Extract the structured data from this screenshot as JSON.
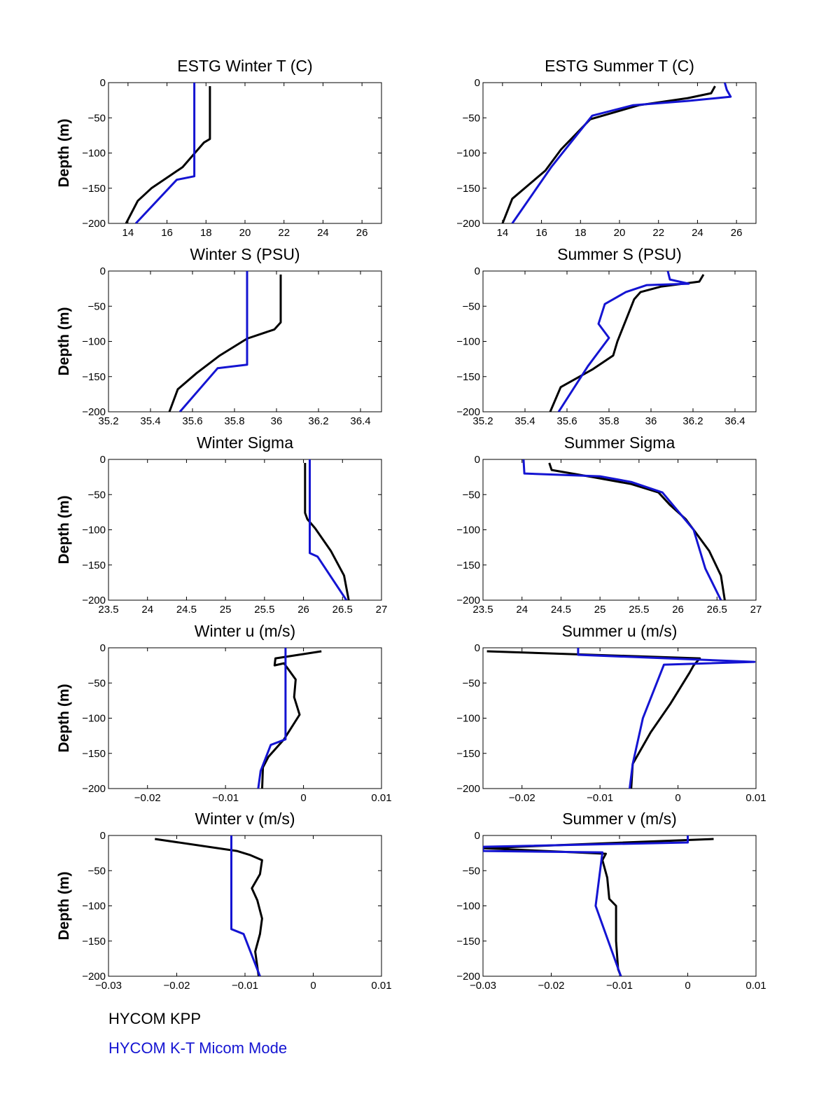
{
  "legend": [
    {
      "name": "HYCOM KPP",
      "color": "#000000"
    },
    {
      "name": "HYCOM K-T Micom Mode",
      "color": "#1414d2"
    }
  ],
  "chart_data": [
    {
      "type": "line",
      "title": "ESTG Winter T (C)",
      "ylabel": "Depth (m)",
      "xlabel": "",
      "xlim": [
        13,
        27
      ],
      "ylim": [
        -200,
        0
      ],
      "xticks": [
        14,
        16,
        18,
        20,
        22,
        24,
        26
      ],
      "xtick_labels": [
        "14",
        "16",
        "18",
        "20",
        "22",
        "24",
        "26"
      ],
      "yticks": [
        0,
        -50,
        -100,
        -150,
        -200
      ],
      "ytick_labels": [
        "0",
        "−50",
        "−100",
        "−150",
        "−200"
      ],
      "series": [
        {
          "name": "HYCOM KPP",
          "color": "#000000",
          "points": [
            [
              18.2,
              -5
            ],
            [
              18.2,
              -80
            ],
            [
              17.9,
              -85
            ],
            [
              16.8,
              -120
            ],
            [
              15.2,
              -150
            ],
            [
              14.5,
              -168
            ],
            [
              13.9,
              -200
            ]
          ]
        },
        {
          "name": "HYCOM K-T Micom Mode",
          "color": "#1414d2",
          "points": [
            [
              17.4,
              0
            ],
            [
              17.4,
              -133
            ],
            [
              16.5,
              -138
            ],
            [
              14.4,
              -200
            ]
          ]
        }
      ]
    },
    {
      "type": "line",
      "title": "ESTG Summer T (C)",
      "ylabel": "",
      "xlabel": "",
      "xlim": [
        13,
        27
      ],
      "ylim": [
        -200,
        0
      ],
      "xticks": [
        14,
        16,
        18,
        20,
        22,
        24,
        26
      ],
      "xtick_labels": [
        "14",
        "16",
        "18",
        "20",
        "22",
        "24",
        "26"
      ],
      "yticks": [
        0,
        -50,
        -100,
        -150,
        -200
      ],
      "ytick_labels": [
        "0",
        "−50",
        "−100",
        "−150",
        "−200"
      ],
      "series": [
        {
          "name": "HYCOM KPP",
          "color": "#000000",
          "points": [
            [
              24.9,
              -5
            ],
            [
              24.7,
              -15
            ],
            [
              23.5,
              -22
            ],
            [
              21,
              -32
            ],
            [
              18.5,
              -52
            ],
            [
              17,
              -95
            ],
            [
              16.2,
              -125
            ],
            [
              14.5,
              -165
            ],
            [
              14,
              -200
            ]
          ]
        },
        {
          "name": "HYCOM K-T Micom Mode",
          "color": "#1414d2",
          "points": [
            [
              25.4,
              0
            ],
            [
              25.5,
              -10
            ],
            [
              25.7,
              -20
            ],
            [
              23.5,
              -26
            ],
            [
              20.7,
              -32
            ],
            [
              18.6,
              -47
            ],
            [
              16.5,
              -120
            ],
            [
              14.5,
              -200
            ]
          ]
        }
      ]
    },
    {
      "type": "line",
      "title": "Winter S (PSU)",
      "ylabel": "Depth (m)",
      "xlabel": "",
      "xlim": [
        35.2,
        36.5
      ],
      "ylim": [
        -200,
        0
      ],
      "xticks": [
        35.2,
        35.4,
        35.6,
        35.8,
        36,
        36.2,
        36.4
      ],
      "xtick_labels": [
        "35.2",
        "35.4",
        "35.6",
        "35.8",
        "36",
        "36.2",
        "36.4"
      ],
      "yticks": [
        0,
        -50,
        -100,
        -150,
        -200
      ],
      "ytick_labels": [
        "0",
        "−50",
        "−100",
        "−150",
        "−200"
      ],
      "series": [
        {
          "name": "HYCOM KPP",
          "color": "#000000",
          "points": [
            [
              36.02,
              -5
            ],
            [
              36.02,
              -73
            ],
            [
              35.99,
              -83
            ],
            [
              35.86,
              -96
            ],
            [
              35.73,
              -120
            ],
            [
              35.62,
              -145
            ],
            [
              35.53,
              -168
            ],
            [
              35.49,
              -200
            ]
          ]
        },
        {
          "name": "HYCOM K-T Micom Mode",
          "color": "#1414d2",
          "points": [
            [
              35.86,
              0
            ],
            [
              35.86,
              -133
            ],
            [
              35.72,
              -138
            ],
            [
              35.54,
              -200
            ]
          ]
        }
      ]
    },
    {
      "type": "line",
      "title": "Summer S (PSU)",
      "ylabel": "",
      "xlabel": "",
      "xlim": [
        35.2,
        36.5
      ],
      "ylim": [
        -200,
        0
      ],
      "xticks": [
        35.2,
        35.4,
        35.6,
        35.8,
        36,
        36.2,
        36.4
      ],
      "xtick_labels": [
        "35.2",
        "35.4",
        "35.6",
        "35.8",
        "36",
        "36.2",
        "36.4"
      ],
      "yticks": [
        0,
        -50,
        -100,
        -150,
        -200
      ],
      "ytick_labels": [
        "0",
        "−50",
        "−100",
        "−150",
        "−200"
      ],
      "series": [
        {
          "name": "HYCOM KPP",
          "color": "#000000",
          "points": [
            [
              36.25,
              -5
            ],
            [
              36.23,
              -15
            ],
            [
              36.05,
              -22
            ],
            [
              35.95,
              -30
            ],
            [
              35.92,
              -40
            ],
            [
              35.88,
              -70
            ],
            [
              35.84,
              -100
            ],
            [
              35.82,
              -120
            ],
            [
              35.72,
              -140
            ],
            [
              35.57,
              -165
            ],
            [
              35.52,
              -200
            ]
          ]
        },
        {
          "name": "HYCOM K-T Micom Mode",
          "color": "#1414d2",
          "points": [
            [
              36.08,
              0
            ],
            [
              36.09,
              -12
            ],
            [
              36.18,
              -18
            ],
            [
              35.98,
              -20
            ],
            [
              35.88,
              -30
            ],
            [
              35.78,
              -47
            ],
            [
              35.75,
              -75
            ],
            [
              35.8,
              -95
            ],
            [
              35.7,
              -135
            ],
            [
              35.56,
              -200
            ]
          ]
        }
      ]
    },
    {
      "type": "line",
      "title": "Winter Sigma",
      "ylabel": "Depth (m)",
      "xlabel": "",
      "xlim": [
        23.5,
        27
      ],
      "ylim": [
        -200,
        0
      ],
      "xticks": [
        23.5,
        24,
        24.5,
        25,
        25.5,
        26,
        26.5,
        27
      ],
      "xtick_labels": [
        "23.5",
        "24",
        "24.5",
        "25",
        "25.5",
        "26",
        "26.5",
        "27"
      ],
      "yticks": [
        0,
        -50,
        -100,
        -150,
        -200
      ],
      "ytick_labels": [
        "0",
        "−50",
        "−100",
        "−150",
        "−200"
      ],
      "series": [
        {
          "name": "HYCOM KPP",
          "color": "#000000",
          "points": [
            [
              26.02,
              -5
            ],
            [
              26.02,
              -76
            ],
            [
              26.05,
              -85
            ],
            [
              26.15,
              -98
            ],
            [
              26.35,
              -130
            ],
            [
              26.52,
              -165
            ],
            [
              26.58,
              -200
            ]
          ]
        },
        {
          "name": "HYCOM K-T Micom Mode",
          "color": "#1414d2",
          "points": [
            [
              26.08,
              0
            ],
            [
              26.08,
              -133
            ],
            [
              26.18,
              -138
            ],
            [
              26.55,
              -200
            ]
          ]
        }
      ]
    },
    {
      "type": "line",
      "title": "Summer Sigma",
      "ylabel": "",
      "xlabel": "",
      "xlim": [
        23.5,
        27
      ],
      "ylim": [
        -200,
        0
      ],
      "xticks": [
        23.5,
        24,
        24.5,
        25,
        25.5,
        26,
        26.5,
        27
      ],
      "xtick_labels": [
        "23.5",
        "24",
        "24.5",
        "25",
        "25.5",
        "26",
        "26.5",
        "27"
      ],
      "yticks": [
        0,
        -50,
        -100,
        -150,
        -200
      ],
      "ytick_labels": [
        "0",
        "−50",
        "−100",
        "−150",
        "−200"
      ],
      "series": [
        {
          "name": "HYCOM KPP",
          "color": "#000000",
          "points": [
            [
              24.35,
              -5
            ],
            [
              24.38,
              -15
            ],
            [
              24.9,
              -25
            ],
            [
              25.4,
              -35
            ],
            [
              25.75,
              -47
            ],
            [
              25.9,
              -65
            ],
            [
              26.1,
              -85
            ],
            [
              26.2,
              -100
            ],
            [
              26.4,
              -130
            ],
            [
              26.55,
              -165
            ],
            [
              26.6,
              -200
            ]
          ]
        },
        {
          "name": "HYCOM K-T Micom Mode",
          "color": "#1414d2",
          "points": [
            [
              24.02,
              0
            ],
            [
              24.03,
              -20
            ],
            [
              25,
              -24
            ],
            [
              25.4,
              -32
            ],
            [
              25.8,
              -47
            ],
            [
              26.2,
              -100
            ],
            [
              26.35,
              -155
            ],
            [
              26.55,
              -200
            ]
          ]
        }
      ]
    },
    {
      "type": "line",
      "title": "Winter u (m/s)",
      "ylabel": "Depth (m)",
      "xlabel": "",
      "xlim": [
        -0.025,
        0.01
      ],
      "ylim": [
        -200,
        0
      ],
      "xticks": [
        -0.02,
        -0.01,
        0,
        0.01
      ],
      "xtick_labels": [
        "−0.02",
        "−0.01",
        "0",
        "0.01"
      ],
      "yticks": [
        0,
        -50,
        -100,
        -150,
        -200
      ],
      "ytick_labels": [
        "0",
        "−50",
        "−100",
        "−150",
        "−200"
      ],
      "series": [
        {
          "name": "HYCOM KPP",
          "color": "#000000",
          "points": [
            [
              0.0023,
              -5
            ],
            [
              -0.0036,
              -15
            ],
            [
              -0.0037,
              -25
            ],
            [
              -0.0025,
              -22
            ],
            [
              -0.001,
              -45
            ],
            [
              -0.0012,
              -70
            ],
            [
              -0.0005,
              -95
            ],
            [
              -0.0025,
              -130
            ],
            [
              -0.0045,
              -155
            ],
            [
              -0.0052,
              -170
            ],
            [
              -0.0053,
              -200
            ]
          ]
        },
        {
          "name": "HYCOM K-T Micom Mode",
          "color": "#1414d2",
          "points": [
            [
              -0.0023,
              0
            ],
            [
              -0.0023,
              -130
            ],
            [
              -0.0042,
              -138
            ],
            [
              -0.0055,
              -175
            ],
            [
              -0.0058,
              -200
            ]
          ]
        }
      ]
    },
    {
      "type": "line",
      "title": "Summer u (m/s)",
      "ylabel": "",
      "xlabel": "",
      "xlim": [
        -0.025,
        0.01
      ],
      "ylim": [
        -200,
        0
      ],
      "xticks": [
        -0.02,
        -0.01,
        0,
        0.01
      ],
      "xtick_labels": [
        "−0.02",
        "−0.01",
        "0",
        "0.01"
      ],
      "yticks": [
        0,
        -50,
        -100,
        -150,
        -200
      ],
      "ytick_labels": [
        "0",
        "−50",
        "−100",
        "−150",
        "−200"
      ],
      "series": [
        {
          "name": "HYCOM KPP",
          "color": "#000000",
          "points": [
            [
              -0.0245,
              -5
            ],
            [
              0.0028,
              -15
            ],
            [
              0.002,
              -25
            ],
            [
              0.0015,
              -35
            ],
            [
              -0.001,
              -80
            ],
            [
              -0.0035,
              -120
            ],
            [
              -0.0058,
              -165
            ],
            [
              -0.006,
              -200
            ]
          ]
        },
        {
          "name": "HYCOM K-T Micom Mode",
          "color": "#1414d2",
          "points": [
            [
              -0.0128,
              0
            ],
            [
              -0.0128,
              -10
            ],
            [
              0.0098,
              -20
            ],
            [
              -0.0018,
              -24
            ],
            [
              -0.0045,
              -100
            ],
            [
              -0.0058,
              -165
            ],
            [
              -0.0062,
              -200
            ]
          ]
        }
      ]
    },
    {
      "type": "line",
      "title": "Winter v (m/s)",
      "ylabel": "Depth (m)",
      "xlabel": "",
      "xlim": [
        -0.03,
        0.01
      ],
      "ylim": [
        -200,
        0
      ],
      "xticks": [
        -0.03,
        -0.02,
        -0.01,
        0,
        0.01
      ],
      "xtick_labels": [
        "−0.03",
        "−0.02",
        "−0.01",
        "0",
        "0.01"
      ],
      "yticks": [
        0,
        -50,
        -100,
        -150,
        -200
      ],
      "ytick_labels": [
        "0",
        "−50",
        "−100",
        "−150",
        "−200"
      ],
      "series": [
        {
          "name": "HYCOM KPP",
          "color": "#000000",
          "points": [
            [
              -0.0232,
              -5
            ],
            [
              -0.0112,
              -22
            ],
            [
              -0.0092,
              -28
            ],
            [
              -0.0075,
              -35
            ],
            [
              -0.0078,
              -55
            ],
            [
              -0.009,
              -75
            ],
            [
              -0.0082,
              -92
            ],
            [
              -0.0075,
              -118
            ],
            [
              -0.0078,
              -140
            ],
            [
              -0.0085,
              -165
            ],
            [
              -0.008,
              -200
            ]
          ]
        },
        {
          "name": "HYCOM K-T Micom Mode",
          "color": "#1414d2",
          "points": [
            [
              -0.012,
              0
            ],
            [
              -0.012,
              -133
            ],
            [
              -0.0102,
              -140
            ],
            [
              -0.0078,
              -200
            ]
          ]
        }
      ]
    },
    {
      "type": "line",
      "title": "Summer v (m/s)",
      "ylabel": "",
      "xlabel": "",
      "xlim": [
        -0.03,
        0.01
      ],
      "ylim": [
        -200,
        0
      ],
      "xticks": [
        -0.03,
        -0.02,
        -0.01,
        0,
        0.01
      ],
      "xtick_labels": [
        "−0.03",
        "−0.02",
        "−0.01",
        "0",
        "0.01"
      ],
      "yticks": [
        0,
        -50,
        -100,
        -150,
        -200
      ],
      "ytick_labels": [
        "0",
        "−50",
        "−100",
        "−150",
        "−200"
      ],
      "series": [
        {
          "name": "HYCOM KPP",
          "color": "#000000",
          "points": [
            [
              0.0038,
              -5
            ],
            [
              -0.03,
              -18
            ],
            [
              -0.012,
              -26
            ],
            [
              -0.0125,
              -35
            ],
            [
              -0.0118,
              -60
            ],
            [
              -0.0115,
              -90
            ],
            [
              -0.0105,
              -100
            ],
            [
              -0.0105,
              -150
            ],
            [
              -0.0102,
              -190
            ],
            [
              -0.0098,
              -200
            ]
          ]
        },
        {
          "name": "HYCOM K-T Micom Mode",
          "color": "#1414d2",
          "points": [
            [
              0,
              0
            ],
            [
              0,
              -10
            ],
            [
              -0.03,
              -16
            ],
            [
              -0.03,
              -22
            ],
            [
              -0.0125,
              -24
            ],
            [
              -0.0135,
              -100
            ],
            [
              -0.0098,
              -200
            ]
          ]
        }
      ]
    }
  ]
}
